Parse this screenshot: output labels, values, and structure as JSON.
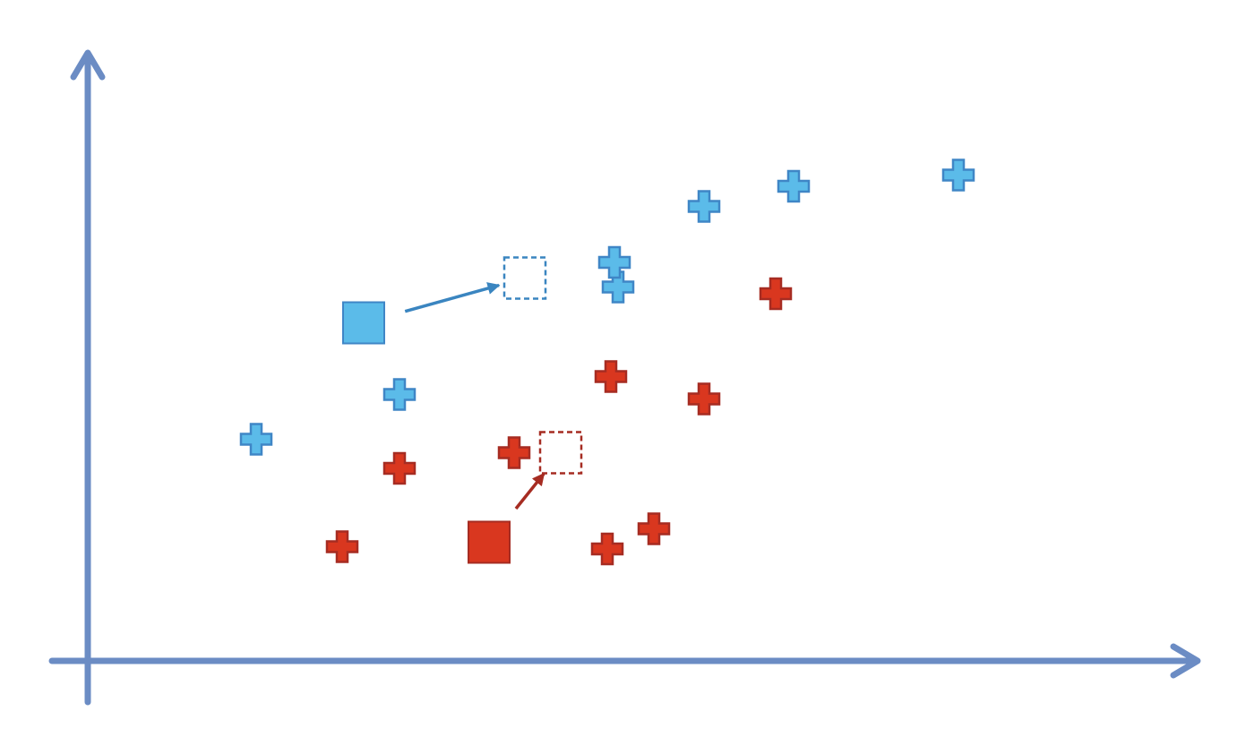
{
  "colors": {
    "axis": "#6b8cc4",
    "blue_fill": "#5bbbe9",
    "blue_stroke": "#3f86c6",
    "red_fill": "#d9371f",
    "red_stroke": "#a62c22",
    "blue_arrow": "#3a85c0",
    "red_arrow": "#a62c22",
    "background": "#ffffff"
  },
  "diagram": {
    "blue_points": [
      {
        "x": 2.35,
        "y": 4.95
      },
      {
        "x": 4.35,
        "y": 5.95
      },
      {
        "x": 7.4,
        "y": 8.35
      },
      {
        "x": 7.35,
        "y": 8.9
      },
      {
        "x": 8.6,
        "y": 10.15
      },
      {
        "x": 9.85,
        "y": 10.6
      },
      {
        "x": 12.15,
        "y": 10.85
      }
    ],
    "red_points": [
      {
        "x": 3.55,
        "y": 2.55
      },
      {
        "x": 4.35,
        "y": 4.3
      },
      {
        "x": 5.95,
        "y": 4.65
      },
      {
        "x": 7.3,
        "y": 6.35
      },
      {
        "x": 7.25,
        "y": 2.5
      },
      {
        "x": 7.9,
        "y": 2.95
      },
      {
        "x": 8.6,
        "y": 5.85
      },
      {
        "x": 9.6,
        "y": 8.2
      }
    ],
    "blue_centroid": {
      "old": {
        "x": 3.85,
        "y": 7.55
      },
      "new": {
        "x": 6.1,
        "y": 8.55
      }
    },
    "red_centroid": {
      "old": {
        "x": 5.6,
        "y": 2.65
      },
      "new": {
        "x": 6.6,
        "y": 4.65
      }
    },
    "x_range": [
      0,
      15
    ],
    "y_range": [
      0,
      12
    ]
  }
}
